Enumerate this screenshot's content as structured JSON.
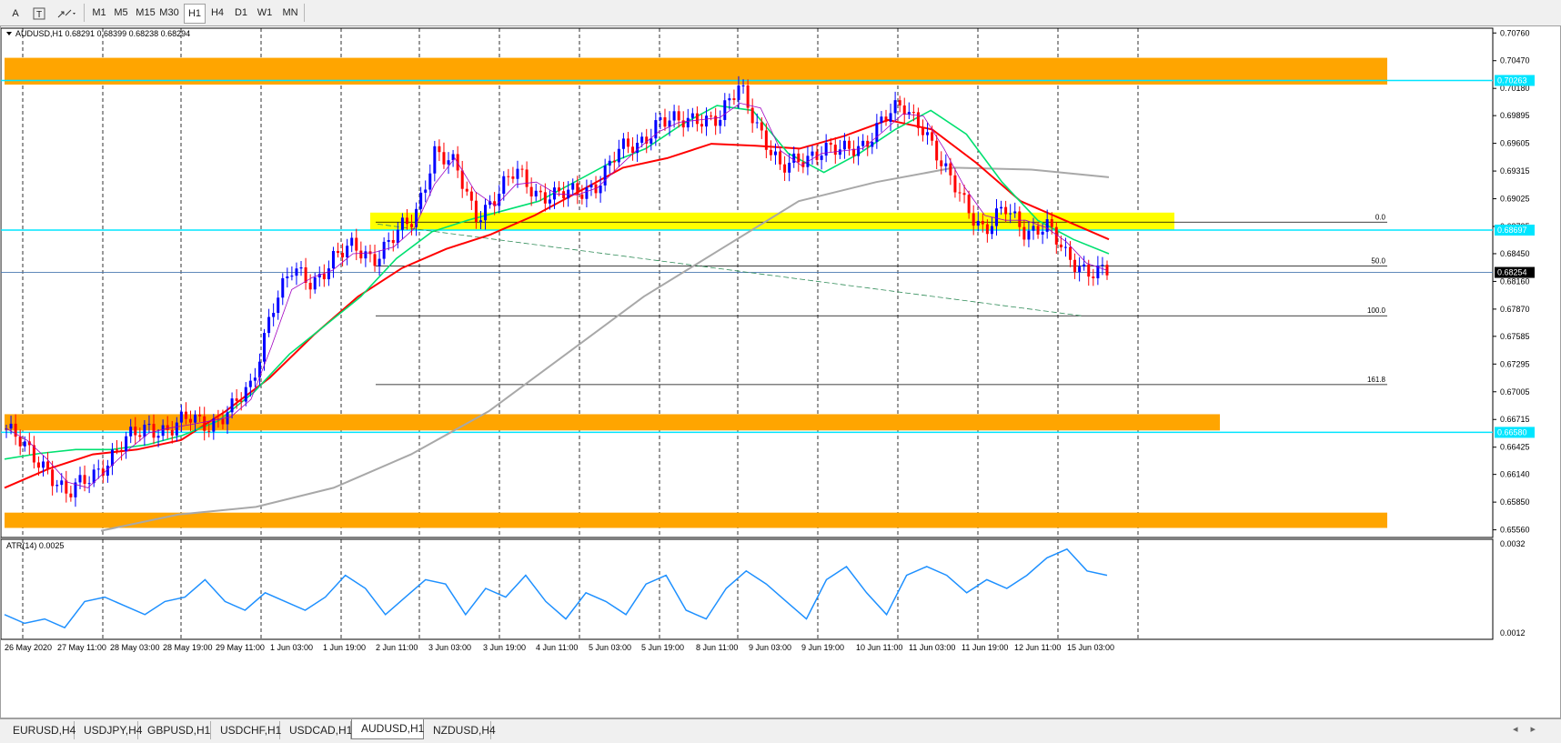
{
  "toolbar": {
    "tools": [
      {
        "name": "text-tool-icon",
        "label": "A"
      },
      {
        "name": "text-label-tool-icon",
        "label": "T"
      },
      {
        "name": "arrows-tool-icon",
        "label": "↕"
      }
    ],
    "timeframes": [
      "M1",
      "M5",
      "M15",
      "M30",
      "H1",
      "H4",
      "D1",
      "W1",
      "MN"
    ],
    "active_timeframe": "H1"
  },
  "chart": {
    "header": "AUDUSD,H1  0.68291 0.68399 0.68238 0.68294",
    "current_price": "0.68254",
    "levels": {
      "resistance_line": "0.70263",
      "mid_line": "0.68697",
      "support_line": "0.66580"
    },
    "price_scale": [
      "0.70760",
      "0.70470",
      "0.70180",
      "0.69895",
      "0.69605",
      "0.69315",
      "0.69025",
      "0.68735",
      "0.68450",
      "0.68160",
      "0.67870",
      "0.67585",
      "0.67295",
      "0.67005",
      "0.66715",
      "0.66425",
      "0.66140",
      "0.65850",
      "0.65560"
    ],
    "fibo": {
      "f0": "0.0",
      "f50": "50.0",
      "f100": "100.0",
      "f1618": "161.8"
    },
    "time_labels": [
      "26 May 2020",
      "27 May 11:00",
      "28 May 03:00",
      "28 May 19:00",
      "29 May 11:00",
      "1 Jun 03:00",
      "1 Jun 19:00",
      "2 Jun 11:00",
      "3 Jun 03:00",
      "3 Jun 19:00",
      "4 Jun 11:00",
      "5 Jun 03:00",
      "5 Jun 19:00",
      "8 Jun 11:00",
      "9 Jun 03:00",
      "9 Jun 19:00",
      "10 Jun 11:00",
      "11 Jun 03:00",
      "11 Jun 19:00",
      "12 Jun 11:00",
      "15 Jun 03:00"
    ],
    "colors": {
      "zone": "#ffa500",
      "yellow_zone": "#ffff00",
      "cyan": "#00e5ff",
      "ma_fast": "#00e070",
      "ma_slow": "#ff0000",
      "ma_long": "#a8a8a8",
      "ma_purple": "#a000c0",
      "bull": "#0000ff",
      "bear": "#ff0000",
      "atr": "#1e90ff"
    }
  },
  "indicator": {
    "label": "ATR(14) 0.0025",
    "scale_top": "0.0032",
    "scale_bottom": "0.0012"
  },
  "tabs": [
    "EURUSD,H4",
    "USDJPY,H4",
    "GBPUSD,H1",
    "USDCHF,H1",
    "USDCAD,H1",
    "AUDUSD,H1",
    "NZDUSD,H4"
  ],
  "active_tab": "AUDUSD,H1",
  "chart_data": {
    "type": "candlestick",
    "symbol": "AUDUSD",
    "timeframe": "H1",
    "ylim": [
      0.6548,
      0.7081
    ],
    "x": [
      "26 May 2020",
      "27 May 11:00",
      "28 May 03:00",
      "28 May 19:00",
      "29 May 11:00",
      "1 Jun 03:00",
      "1 Jun 19:00",
      "2 Jun 11:00",
      "3 Jun 03:00",
      "3 Jun 19:00",
      "4 Jun 11:00",
      "5 Jun 03:00",
      "5 Jun 19:00",
      "8 Jun 11:00",
      "9 Jun 03:00",
      "9 Jun 19:00",
      "10 Jun 11:00",
      "11 Jun 03:00",
      "11 Jun 19:00",
      "12 Jun 11:00",
      "15 Jun 03:00"
    ],
    "close_path": [
      0.6662,
      0.6638,
      0.6622,
      0.659,
      0.661,
      0.663,
      0.665,
      0.6665,
      0.666,
      0.6672,
      0.6668,
      0.668,
      0.6705,
      0.679,
      0.6825,
      0.6815,
      0.684,
      0.685,
      0.6842,
      0.6862,
      0.688,
      0.6955,
      0.6935,
      0.6885,
      0.6905,
      0.693,
      0.691,
      0.6905,
      0.6908,
      0.692,
      0.695,
      0.696,
      0.6985,
      0.698,
      0.699,
      0.6985,
      0.702,
      0.6975,
      0.693,
      0.6945,
      0.6955,
      0.695,
      0.696,
      0.6985,
      0.6998,
      0.698,
      0.693,
      0.69,
      0.687,
      0.689,
      0.687,
      0.6875,
      0.684,
      0.683,
      0.6825
    ],
    "ma_fast": [
      0.663,
      0.6636,
      0.664,
      0.664,
      0.6645,
      0.6655,
      0.667,
      0.67,
      0.674,
      0.677,
      0.68,
      0.684,
      0.6868,
      0.688,
      0.689,
      0.69,
      0.692,
      0.694,
      0.6955,
      0.698,
      0.7,
      0.6995,
      0.695,
      0.693,
      0.695,
      0.6975,
      0.6995,
      0.697,
      0.692,
      0.688,
      0.686,
      0.6845
    ],
    "ma_slow": [
      0.66,
      0.662,
      0.6635,
      0.664,
      0.665,
      0.668,
      0.6715,
      0.676,
      0.68,
      0.683,
      0.685,
      0.6865,
      0.6885,
      0.691,
      0.6935,
      0.6945,
      0.696,
      0.6958,
      0.6955,
      0.6968,
      0.6985,
      0.6975,
      0.694,
      0.69,
      0.688,
      0.686
    ],
    "ma_long": [
      0.6555,
      0.6572,
      0.658,
      0.66,
      0.6635,
      0.668,
      0.674,
      0.68,
      0.685,
      0.69,
      0.692,
      0.6935,
      0.6933,
      0.6925
    ],
    "levels": [
      0.70263,
      0.68697,
      0.6658
    ],
    "current": 0.68254,
    "atr": {
      "name": "ATR(14)",
      "ylim": [
        0.0012,
        0.0032
      ],
      "values": [
        0.0016,
        0.0014,
        0.0015,
        0.0013,
        0.0019,
        0.002,
        0.0018,
        0.0016,
        0.0019,
        0.002,
        0.0024,
        0.0019,
        0.0017,
        0.0021,
        0.0019,
        0.0017,
        0.002,
        0.0025,
        0.0022,
        0.0016,
        0.002,
        0.0024,
        0.0023,
        0.0016,
        0.0022,
        0.002,
        0.0025,
        0.0019,
        0.0015,
        0.0021,
        0.0019,
        0.0016,
        0.0023,
        0.0025,
        0.0017,
        0.0015,
        0.0022,
        0.0026,
        0.0023,
        0.0019,
        0.0015,
        0.0024,
        0.0027,
        0.0021,
        0.0016,
        0.0025,
        0.0027,
        0.0025,
        0.0021,
        0.0024,
        0.0022,
        0.0025,
        0.0029,
        0.0031,
        0.0026,
        0.0025
      ]
    }
  }
}
